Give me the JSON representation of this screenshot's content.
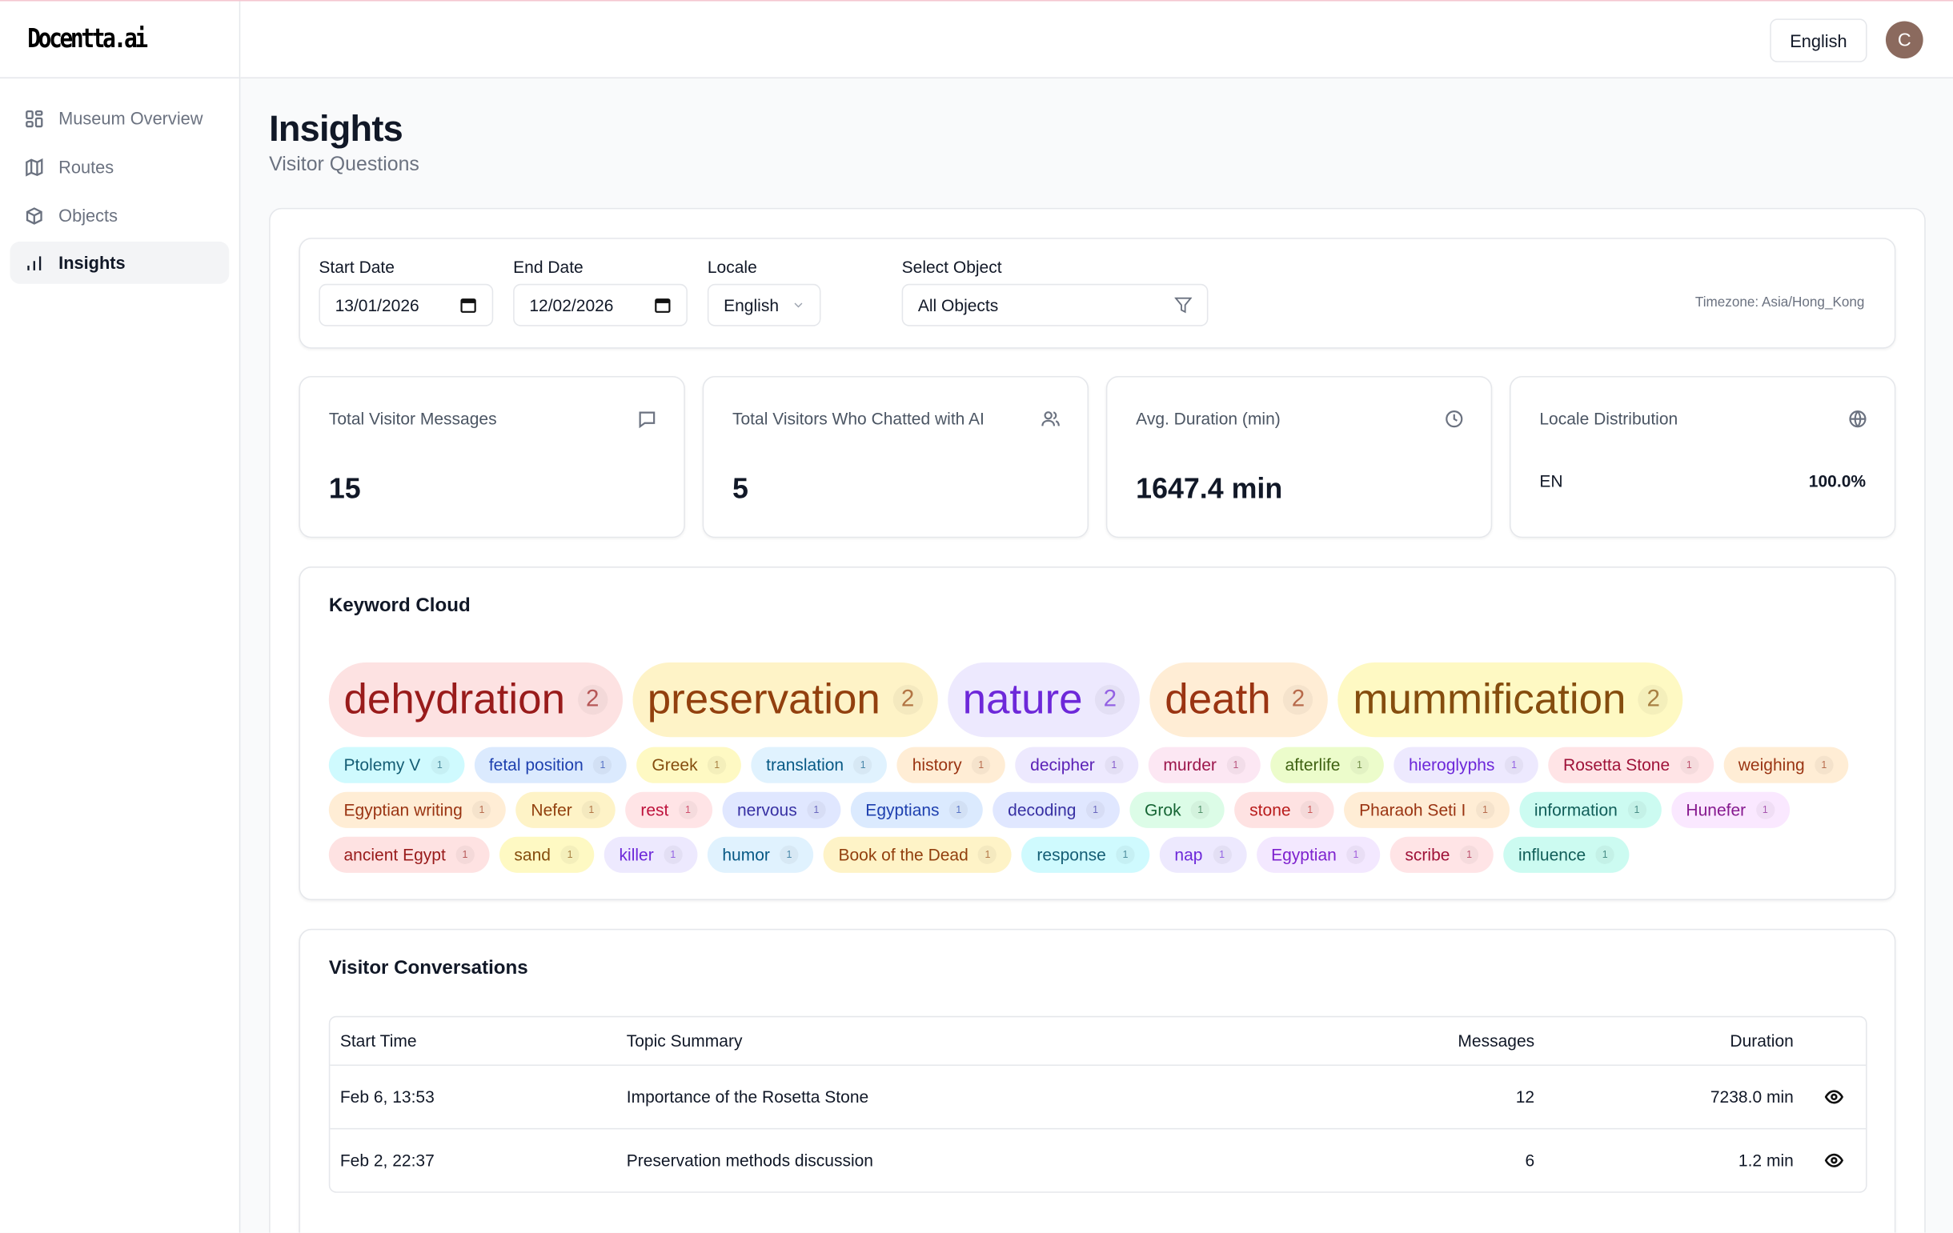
{
  "app": {
    "logo": "Docentta.ai",
    "language_button": "English",
    "avatar_initial": "C",
    "avatar_color": "#8b6a5e"
  },
  "sidebar": {
    "items": [
      {
        "label": "Museum Overview",
        "icon": "grid-icon"
      },
      {
        "label": "Routes",
        "icon": "map-icon"
      },
      {
        "label": "Objects",
        "icon": "box-icon"
      },
      {
        "label": "Insights",
        "icon": "bar-chart-icon",
        "active": true
      }
    ]
  },
  "page": {
    "title": "Insights",
    "subtitle": "Visitor Questions"
  },
  "filters": {
    "start_date": {
      "label": "Start Date",
      "value": "13/01/2026"
    },
    "end_date": {
      "label": "End Date",
      "value": "12/02/2026"
    },
    "locale": {
      "label": "Locale",
      "value": "English"
    },
    "object": {
      "label": "Select Object",
      "value": "All Objects"
    },
    "timezone": "Timezone: Asia/Hong_Kong"
  },
  "stats": [
    {
      "label": "Total Visitor Messages",
      "value": "15",
      "icon": "message-icon"
    },
    {
      "label": "Total Visitors Who Chatted with AI",
      "value": "5",
      "icon": "users-icon"
    },
    {
      "label": "Avg. Duration (min)",
      "value": "1647.4 min",
      "icon": "clock-icon"
    },
    {
      "label": "Locale Distribution",
      "icon": "globe-icon",
      "locale": "EN",
      "percent": "100.0%"
    }
  ],
  "keyword_cloud": {
    "title": "Keyword Cloud",
    "keywords": [
      {
        "word": "dehydration",
        "count": "2",
        "bg": "#fde2e2",
        "fg": "#991b1b"
      },
      {
        "word": "preservation",
        "count": "2",
        "bg": "#fef3c7",
        "fg": "#92400e"
      },
      {
        "word": "nature",
        "count": "2",
        "bg": "#ede9fe",
        "fg": "#6d28d9"
      },
      {
        "word": "death",
        "count": "2",
        "bg": "#ffedd5",
        "fg": "#9a3412"
      },
      {
        "word": "mummification",
        "count": "2",
        "bg": "#fef9c3",
        "fg": "#854d0e"
      },
      {
        "word": "Ptolemy V",
        "count": "1",
        "bg": "#cffafe",
        "fg": "#155e75"
      },
      {
        "word": "fetal position",
        "count": "1",
        "bg": "#dbeafe",
        "fg": "#1e40af"
      },
      {
        "word": "Greek",
        "count": "1",
        "bg": "#fef9c3",
        "fg": "#854d0e"
      },
      {
        "word": "translation",
        "count": "1",
        "bg": "#e0f2fe",
        "fg": "#075985"
      },
      {
        "word": "history",
        "count": "1",
        "bg": "#ffedd5",
        "fg": "#9a3412"
      },
      {
        "word": "decipher",
        "count": "1",
        "bg": "#ede9fe",
        "fg": "#5b21b6"
      },
      {
        "word": "murder",
        "count": "1",
        "bg": "#fce7f3",
        "fg": "#9d174d"
      },
      {
        "word": "afterlife",
        "count": "1",
        "bg": "#ecfccb",
        "fg": "#3f6212"
      },
      {
        "word": "hieroglyphs",
        "count": "1",
        "bg": "#ede9fe",
        "fg": "#6d28d9"
      },
      {
        "word": "Rosetta Stone",
        "count": "1",
        "bg": "#ffe4e6",
        "fg": "#9f1239"
      },
      {
        "word": "weighing",
        "count": "1",
        "bg": "#ffedd5",
        "fg": "#9a3412"
      },
      {
        "word": "Egyptian writing",
        "count": "1",
        "bg": "#ffedd5",
        "fg": "#9a3412"
      },
      {
        "word": "Nefer",
        "count": "1",
        "bg": "#fef3c7",
        "fg": "#92400e"
      },
      {
        "word": "rest",
        "count": "1",
        "bg": "#ffe4e6",
        "fg": "#be123c"
      },
      {
        "word": "nervous",
        "count": "1",
        "bg": "#e0e7ff",
        "fg": "#3730a3"
      },
      {
        "word": "Egyptians",
        "count": "1",
        "bg": "#dbeafe",
        "fg": "#1e40af"
      },
      {
        "word": "decoding",
        "count": "1",
        "bg": "#e0e7ff",
        "fg": "#3730a3"
      },
      {
        "word": "Grok",
        "count": "1",
        "bg": "#dcfce7",
        "fg": "#166534"
      },
      {
        "word": "stone",
        "count": "1",
        "bg": "#fee2e2",
        "fg": "#b91c1c"
      },
      {
        "word": "Pharaoh Seti I",
        "count": "1",
        "bg": "#ffedd5",
        "fg": "#9a3412"
      },
      {
        "word": "information",
        "count": "1",
        "bg": "#ccfbf1",
        "fg": "#115e59"
      },
      {
        "word": "Hunefer",
        "count": "1",
        "bg": "#fae8ff",
        "fg": "#86198f"
      },
      {
        "word": "ancient Egypt",
        "count": "1",
        "bg": "#fee2e2",
        "fg": "#991b1b"
      },
      {
        "word": "sand",
        "count": "1",
        "bg": "#fef9c3",
        "fg": "#854d0e"
      },
      {
        "word": "killer",
        "count": "1",
        "bg": "#ede9fe",
        "fg": "#6d28d9"
      },
      {
        "word": "humor",
        "count": "1",
        "bg": "#e0f2fe",
        "fg": "#075985"
      },
      {
        "word": "Book of the Dead",
        "count": "1",
        "bg": "#fef3c7",
        "fg": "#92400e"
      },
      {
        "word": "response",
        "count": "1",
        "bg": "#cffafe",
        "fg": "#155e75"
      },
      {
        "word": "nap",
        "count": "1",
        "bg": "#ede9fe",
        "fg": "#6d28d9"
      },
      {
        "word": "Egyptian",
        "count": "1",
        "bg": "#f3e8ff",
        "fg": "#7e22ce"
      },
      {
        "word": "scribe",
        "count": "1",
        "bg": "#ffe4e6",
        "fg": "#9f1239"
      },
      {
        "word": "influence",
        "count": "1",
        "bg": "#ccfbf1",
        "fg": "#115e59"
      }
    ]
  },
  "conversations": {
    "title": "Visitor Conversations",
    "columns": [
      "Start Time",
      "Topic Summary",
      "Messages",
      "Duration"
    ],
    "rows": [
      {
        "start": "Feb 6, 13:53",
        "topic": "Importance of the Rosetta Stone",
        "messages": "12",
        "duration": "7238.0 min"
      },
      {
        "start": "Feb 2, 22:37",
        "topic": "Preservation methods discussion",
        "messages": "6",
        "duration": "1.2 min"
      }
    ]
  }
}
